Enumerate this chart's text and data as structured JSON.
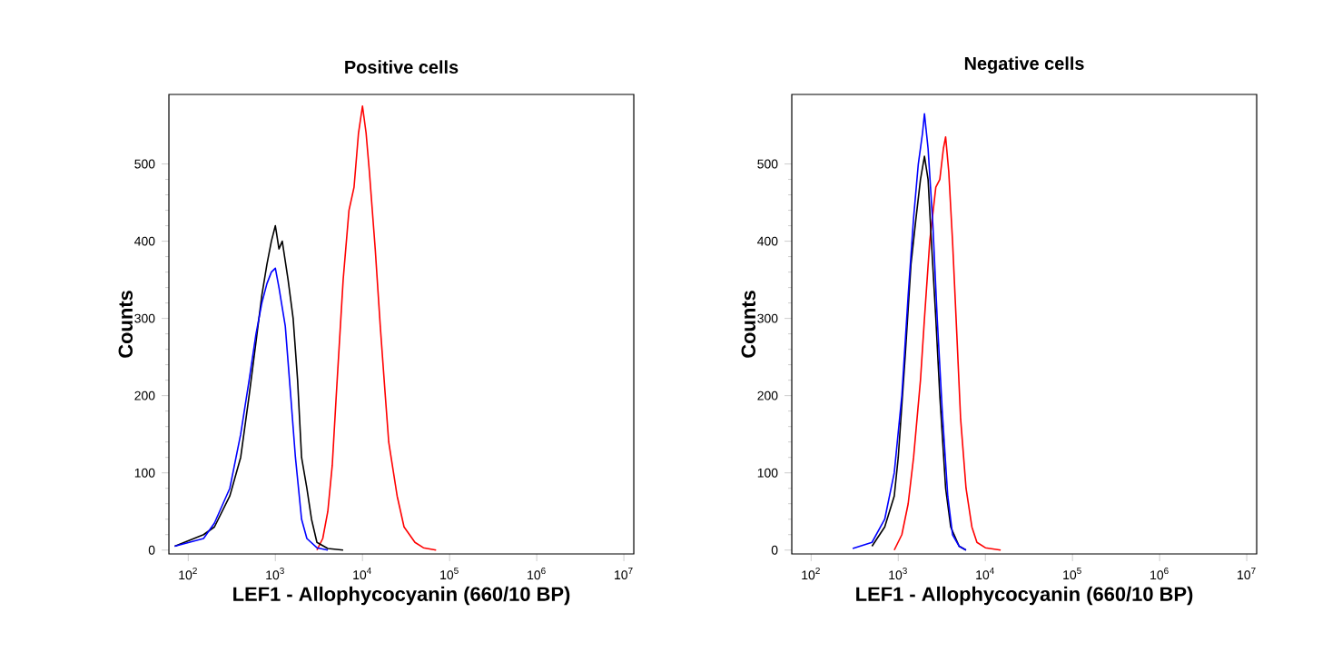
{
  "chart_data": [
    {
      "type": "line",
      "title": "Positive cells",
      "xlabel": "LEF1 - Allophycocyanin  (660/10 BP)",
      "ylabel": "Counts",
      "log": "x",
      "xlim": [
        60,
        13000000
      ],
      "ylim": [
        -5,
        590
      ],
      "xticks": [
        {
          "value": 100,
          "label": "10$^{2}$"
        },
        {
          "value": 1000,
          "label": "10$^{3}$"
        },
        {
          "value": 10000,
          "label": "10$^{4}$"
        },
        {
          "value": 100000,
          "label": "10$^{5}$"
        },
        {
          "value": 1000000,
          "label": "10$^{6}$"
        },
        {
          "value": 10000000,
          "label": "10$^{7}$"
        }
      ],
      "yticks": [
        0,
        100,
        200,
        300,
        400,
        500
      ],
      "series": [
        {
          "color": "#ff0000",
          "x": [
            3000,
            3500,
            4000,
            4500,
            5000,
            6000,
            7000,
            8000,
            9000,
            10000,
            11000,
            12000,
            14000,
            16000,
            18000,
            20000,
            25000,
            30000,
            40000,
            50000,
            70000
          ],
          "values": [
            0,
            15,
            50,
            110,
            200,
            350,
            440,
            470,
            540,
            575,
            540,
            490,
            390,
            290,
            210,
            140,
            70,
            30,
            10,
            3,
            0
          ]
        },
        {
          "color": "#000000",
          "x": [
            70,
            150,
            200,
            300,
            400,
            500,
            600,
            700,
            800,
            900,
            1000,
            1100,
            1200,
            1400,
            1600,
            1800,
            2000,
            2300,
            2600,
            3000,
            4000,
            6000
          ],
          "values": [
            5,
            20,
            30,
            70,
            120,
            200,
            270,
            330,
            370,
            400,
            420,
            390,
            400,
            350,
            300,
            220,
            120,
            80,
            40,
            10,
            2,
            0
          ]
        },
        {
          "color": "#0000ff",
          "x": [
            70,
            150,
            200,
            300,
            400,
            500,
            600,
            700,
            800,
            900,
            1000,
            1100,
            1300,
            1500,
            1700,
            2000,
            2300,
            3000,
            4000
          ],
          "values": [
            5,
            15,
            35,
            80,
            150,
            220,
            280,
            320,
            345,
            360,
            365,
            340,
            290,
            200,
            120,
            40,
            15,
            3,
            0
          ]
        }
      ]
    },
    {
      "type": "line",
      "title": "Negative cells",
      "xlabel": "LEF1 - Allophycocyanin  (660/10 BP)",
      "ylabel": "Counts",
      "log": "x",
      "xlim": [
        60,
        13000000
      ],
      "ylim": [
        -5,
        590
      ],
      "xticks": [
        {
          "value": 100,
          "label": "10$^{2}$"
        },
        {
          "value": 1000,
          "label": "10$^{3}$"
        },
        {
          "value": 10000,
          "label": "10$^{4}$"
        },
        {
          "value": 100000,
          "label": "10$^{5}$"
        },
        {
          "value": 1000000,
          "label": "10$^{6}$"
        },
        {
          "value": 10000000,
          "label": "10$^{7}$"
        }
      ],
      "yticks": [
        0,
        100,
        200,
        300,
        400,
        500
      ],
      "series": [
        {
          "color": "#ff0000",
          "x": [
            900,
            1100,
            1300,
            1500,
            1800,
            2000,
            2300,
            2700,
            3000,
            3300,
            3500,
            3800,
            4200,
            4700,
            5200,
            6000,
            7000,
            8000,
            10000,
            15000
          ],
          "values": [
            0,
            20,
            60,
            120,
            220,
            300,
            400,
            470,
            480,
            520,
            535,
            490,
            400,
            280,
            170,
            80,
            30,
            10,
            3,
            0
          ]
        },
        {
          "color": "#000000",
          "x": [
            500,
            700,
            900,
            1000,
            1200,
            1400,
            1600,
            1800,
            2000,
            2200,
            2400,
            2700,
            3000,
            3500,
            4000,
            5000,
            6000
          ],
          "values": [
            5,
            30,
            70,
            120,
            250,
            370,
            430,
            480,
            510,
            480,
            400,
            300,
            200,
            80,
            30,
            5,
            0
          ]
        },
        {
          "color": "#0000ff",
          "x": [
            300,
            500,
            700,
            900,
            1100,
            1300,
            1500,
            1700,
            1900,
            2000,
            2200,
            2500,
            2800,
            3200,
            3700,
            4200,
            5000,
            6000
          ],
          "values": [
            2,
            10,
            40,
            100,
            200,
            330,
            430,
            500,
            540,
            565,
            520,
            420,
            300,
            180,
            70,
            20,
            5,
            0
          ]
        }
      ]
    }
  ]
}
